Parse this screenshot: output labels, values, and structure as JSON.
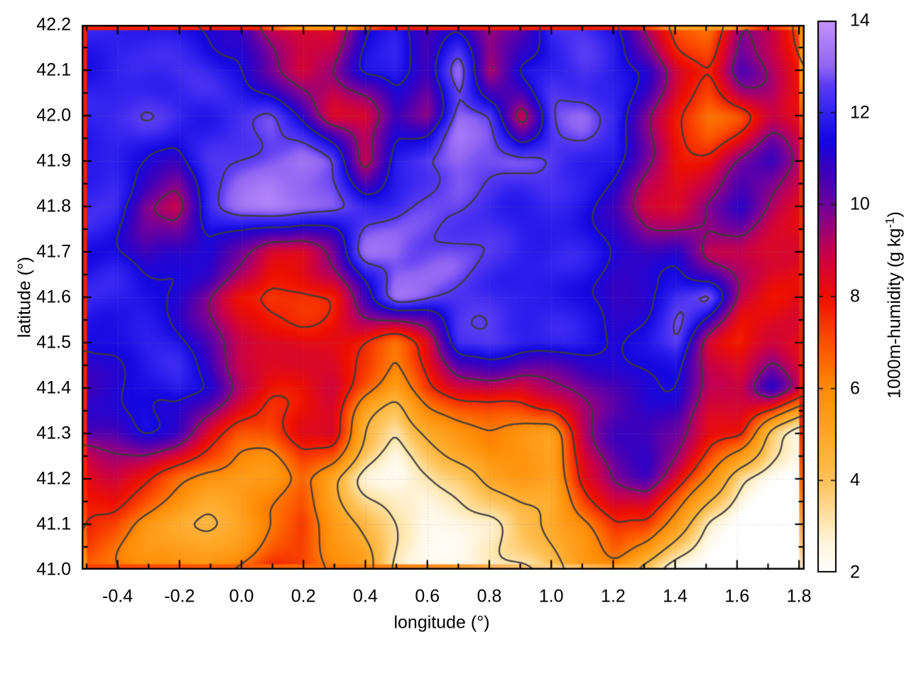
{
  "figure": {
    "xlabel": "longitude (°)",
    "ylabel": "latitude (°)",
    "cblabel_main": "1000m-humidity (g kg",
    "cblabel_sup": "-1",
    "cblabel_close": ")"
  },
  "chart_data": {
    "type": "heatmap",
    "title": "",
    "xlabel": "longitude (°)",
    "ylabel": "latitude (°)",
    "colorbar_label": "1000m-humidity (g kg⁻¹)",
    "x_range": [
      -0.516,
      1.818
    ],
    "y_range": [
      41.0,
      42.2
    ],
    "colorbar_range": [
      2,
      14
    ],
    "x_tick_values": [
      -0.4,
      -0.2,
      0.0,
      0.2,
      0.4,
      0.6,
      0.8,
      1.0,
      1.2,
      1.4,
      1.6,
      1.8
    ],
    "x_tick_labels": [
      "-0.4",
      "-0.2",
      "0.0",
      "0.2",
      "0.4",
      "0.6",
      "0.8",
      "1.0",
      "1.2",
      "1.4",
      "1.6",
      "1.8"
    ],
    "x_minor_step": 0.1,
    "y_tick_values": [
      41.0,
      41.1,
      41.2,
      41.3,
      41.4,
      41.5,
      41.6,
      41.7,
      41.8,
      41.9,
      42.0,
      42.1,
      42.2
    ],
    "y_tick_labels": [
      "41.0",
      "41.1",
      "41.2",
      "41.3",
      "41.4",
      "41.5",
      "41.6",
      "41.7",
      "41.8",
      "41.9",
      "42.0",
      "42.1",
      "42.2"
    ],
    "y_minor_step": 0.05,
    "colorbar_tick_values": [
      2,
      4,
      6,
      8,
      10,
      12,
      14
    ],
    "colorbar_tick_labels": [
      "2",
      "4",
      "6",
      "8",
      "10",
      "12",
      "14"
    ],
    "grid_dotted": true,
    "legend": "none",
    "palette": [
      [
        2.0,
        "#ffffff"
      ],
      [
        2.6,
        "#fff6e0"
      ],
      [
        3.0,
        "#ffeab9"
      ],
      [
        4.0,
        "#fec257"
      ],
      [
        5.0,
        "#ffa726"
      ],
      [
        6.0,
        "#ff8c05"
      ],
      [
        7.0,
        "#fb5000"
      ],
      [
        8.0,
        "#ee0f00"
      ],
      [
        9.0,
        "#c4004f"
      ],
      [
        10.0,
        "#70009e"
      ],
      [
        10.7,
        "#3c00bb"
      ],
      [
        11.4,
        "#1408e0"
      ],
      [
        12.0,
        "#3222ef"
      ],
      [
        12.6,
        "#5b3cf3"
      ],
      [
        13.0,
        "#9065f3"
      ],
      [
        14.0,
        "#c493fa"
      ]
    ],
    "contour_levels": [
      3.2,
      4.6,
      6.3,
      7.7,
      9.6,
      11.3,
      12.55
    ],
    "contour_color": "#3b3b3b",
    "grid_lons": [
      -0.5,
      -0.4,
      -0.3,
      -0.2,
      -0.1,
      0.0,
      0.1,
      0.2,
      0.3,
      0.4,
      0.5,
      0.6,
      0.7,
      0.8,
      0.9,
      1.0,
      1.1,
      1.2,
      1.3,
      1.4,
      1.5,
      1.6,
      1.7,
      1.8
    ],
    "grid_lats": [
      42.2,
      42.1,
      42.0,
      41.9,
      41.8,
      41.7,
      41.6,
      41.5,
      41.4,
      41.3,
      41.2,
      41.1,
      41.0
    ],
    "values": [
      [
        12,
        12,
        11.8,
        11.5,
        11.5,
        11,
        9,
        8.5,
        8.5,
        11,
        12,
        10.5,
        11,
        9.5,
        10,
        12,
        12,
        11.5,
        9,
        7,
        6.5,
        10,
        9,
        7
      ],
      [
        12,
        12,
        12,
        12,
        11.8,
        11.5,
        10,
        8.5,
        9,
        11.5,
        12,
        10.5,
        12.8,
        9,
        11.5,
        12,
        12.2,
        11.5,
        11,
        8.5,
        8,
        10.5,
        9,
        7.5
      ],
      [
        12,
        12,
        12.2,
        12,
        11.8,
        12,
        12.5,
        11,
        8.5,
        8.5,
        11,
        9.5,
        13,
        12.5,
        9,
        12.5,
        12.8,
        12,
        10,
        8,
        6.5,
        7,
        9,
        8.5
      ],
      [
        12,
        12,
        11.5,
        10.5,
        12,
        12.5,
        13,
        13.2,
        12.5,
        9,
        12,
        12.5,
        13,
        12.8,
        12.5,
        12.5,
        12,
        11.5,
        9.5,
        8,
        8,
        9.5,
        10.5,
        9
      ],
      [
        11.8,
        11.8,
        9.5,
        9,
        12,
        13,
        13.4,
        13.2,
        13,
        12.5,
        12.2,
        12.5,
        12.8,
        12.5,
        12.2,
        12,
        11.8,
        11,
        9,
        8.5,
        10,
        11,
        9.5,
        8.5
      ],
      [
        11.5,
        11.5,
        10.5,
        11,
        11.8,
        10,
        8.5,
        8.5,
        10,
        13,
        13.2,
        12.8,
        12.5,
        12.3,
        12,
        11.8,
        11.5,
        11.2,
        10.8,
        11,
        9,
        9.5,
        8.5,
        8.5
      ],
      [
        11.8,
        11.8,
        11.5,
        11.2,
        10,
        8,
        7,
        7.5,
        8,
        11,
        13,
        12.8,
        12.6,
        12.4,
        12.2,
        12,
        11.5,
        11,
        11.5,
        12.5,
        13,
        9,
        8.5,
        8.5
      ],
      [
        11.5,
        11.5,
        11.8,
        11.5,
        10.5,
        9,
        8.5,
        8,
        8,
        7.5,
        6.5,
        8,
        12,
        12.3,
        12,
        11.8,
        11.5,
        11,
        11.5,
        12.8,
        9,
        8,
        8.5,
        8.5
      ],
      [
        11,
        11,
        11.5,
        11.8,
        11,
        9,
        8,
        8,
        8.5,
        7,
        5.5,
        7.5,
        8.5,
        9,
        8.5,
        9.5,
        10,
        10.5,
        11,
        11.2,
        9,
        8.5,
        11,
        8.5
      ],
      [
        10.5,
        10.5,
        11,
        10.5,
        8.5,
        7,
        6.5,
        8,
        8.5,
        4.5,
        3,
        4.5,
        5.5,
        6,
        6,
        5.5,
        9,
        10.5,
        11,
        10.5,
        8.5,
        8,
        4,
        2.5
      ],
      [
        8,
        8.5,
        8,
        6.5,
        5.5,
        5,
        5.5,
        6.5,
        5,
        3,
        2.5,
        3,
        4,
        5.5,
        5.5,
        5,
        8.5,
        10,
        10.5,
        8.5,
        6,
        3,
        2,
        2
      ],
      [
        7.5,
        7,
        5.5,
        5,
        4.5,
        5,
        6,
        7.5,
        5.5,
        4.5,
        3,
        2.2,
        2.5,
        3,
        4.5,
        5,
        6,
        8,
        8,
        5.5,
        3,
        2,
        2,
        2
      ],
      [
        7,
        6.5,
        5.5,
        5.5,
        6,
        6.5,
        7.5,
        7,
        6,
        5,
        3,
        2.2,
        2,
        2.5,
        3,
        4,
        5,
        5.5,
        4,
        2.5,
        2,
        2,
        2,
        2
      ]
    ],
    "rim": {
      "left": [
        [
          0,
          "#f52000"
        ],
        [
          0.85,
          "#ee2800"
        ],
        [
          0.96,
          "#ff7a00"
        ],
        [
          1,
          "#ffa030"
        ]
      ],
      "top": [
        [
          0,
          "#f52000"
        ],
        [
          0.24,
          "#f52000"
        ],
        [
          0.29,
          "#ff9800"
        ],
        [
          0.37,
          "#ff9800"
        ],
        [
          0.42,
          "#f52000"
        ],
        [
          0.77,
          "#f02000"
        ],
        [
          0.82,
          "#ffa020"
        ],
        [
          0.9,
          "#ffa020"
        ],
        [
          0.95,
          "#f52000"
        ],
        [
          1,
          "#ff8c00"
        ]
      ],
      "right": [
        [
          0,
          "#ff9000"
        ],
        [
          0.1,
          "#ff9800"
        ],
        [
          0.2,
          "#f03000"
        ],
        [
          0.72,
          "#e82000"
        ],
        [
          0.85,
          "#ff7000"
        ],
        [
          0.95,
          "#ffc070"
        ],
        [
          1,
          "#ffedd8"
        ]
      ],
      "bottom": [
        [
          0,
          "#ff4000"
        ],
        [
          0.3,
          "#ff6a00"
        ],
        [
          0.5,
          "#ff9020"
        ],
        [
          0.62,
          "#ffc878"
        ],
        [
          0.78,
          "rgba(255,230,190,0)"
        ],
        [
          1,
          "rgba(255,255,255,0)"
        ]
      ]
    },
    "gridline_color": "rgba(125,125,125,0.5)"
  }
}
